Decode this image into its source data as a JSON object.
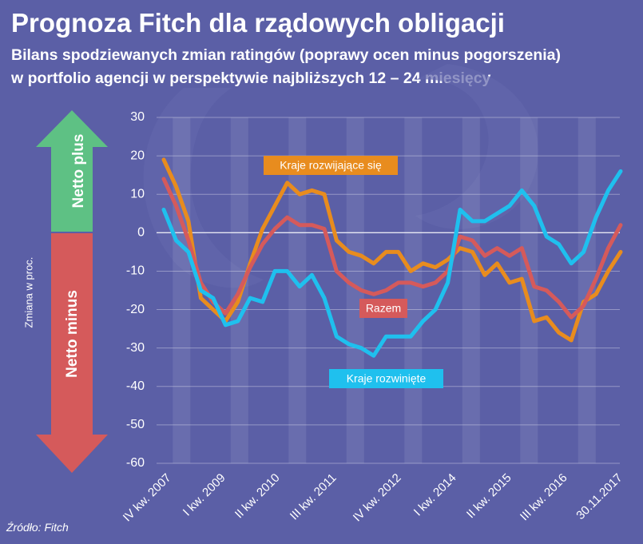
{
  "title": "Prognoza Fitch dla rządowych obligacji",
  "subtitle_line1": "Bilans spodziewanych zmian ratingów (poprawy ocen minus pogorszenia)",
  "subtitle_line2": "w portfolio agencji w perspektywie najbliższych 12 – 24 miesięcy",
  "source": "Źródło: Fitch",
  "arrow_up_label": "Netto plus",
  "arrow_down_label": "Netto minus",
  "colors": {
    "background": "#5b5fa6",
    "arrow_up": "#5ec184",
    "arrow_down": "#d55a5b",
    "developing": "#e88c1e",
    "total": "#d55a5b",
    "developed": "#1fc0ee"
  },
  "chart_data": {
    "type": "line",
    "ylabel": "Zmiana w proc.",
    "ylim": [
      -60,
      30
    ],
    "yticks": [
      30,
      20,
      10,
      0,
      -10,
      -20,
      -30,
      -40,
      -50,
      -60
    ],
    "xtick_labels": [
      "IV kw. 2007",
      "I kw. 2009",
      "II kw. 2010",
      "III kw. 2011",
      "IV kw. 2012",
      "I kw. 2014",
      "II kw. 2015",
      "III kw. 2016",
      "30.11.2017"
    ],
    "grid": true,
    "series": [
      {
        "name": "Kraje rozwijające się",
        "color": "#e88c1e",
        "values": [
          19,
          12,
          3,
          -17,
          -20,
          -23,
          -18,
          -8,
          1,
          7,
          13,
          10,
          11,
          10,
          -2,
          -5,
          -6,
          -8,
          -5,
          -5,
          -10,
          -8,
          -9,
          -7,
          -4,
          -5,
          -11,
          -8,
          -13,
          -12,
          -23,
          -22,
          -26,
          -28,
          -18,
          -16,
          -10,
          -5
        ]
      },
      {
        "name": "Razem",
        "color": "#d55a5b",
        "values": [
          14,
          7,
          -2,
          -13,
          -18,
          -21,
          -16,
          -9,
          -3,
          1,
          4,
          2,
          2,
          1,
          -10,
          -13,
          -15,
          -16,
          -15,
          -13,
          -13,
          -14,
          -13,
          -10,
          -1,
          -2,
          -6,
          -4,
          -6,
          -4,
          -14,
          -15,
          -18,
          -22,
          -19,
          -12,
          -4,
          2
        ]
      },
      {
        "name": "Kraje rozwinięte",
        "color": "#1fc0ee",
        "values": [
          6,
          -2,
          -5,
          -15,
          -17,
          -24,
          -23,
          -17,
          -18,
          -10,
          -10,
          -14,
          -11,
          -17,
          -27,
          -29,
          -30,
          -32,
          -27,
          -27,
          -27,
          -23,
          -20,
          -13,
          6,
          3,
          3,
          5,
          7,
          11,
          7,
          -1,
          -3,
          -8,
          -5,
          4,
          11,
          16
        ]
      }
    ],
    "annotations": [
      {
        "text": "Kraje rozwijające się",
        "series": "Kraje rozwijające się"
      },
      {
        "text": "Razem",
        "series": "Razem"
      },
      {
        "text": "Kraje rozwinięte",
        "series": "Kraje rozwinięte"
      }
    ]
  }
}
